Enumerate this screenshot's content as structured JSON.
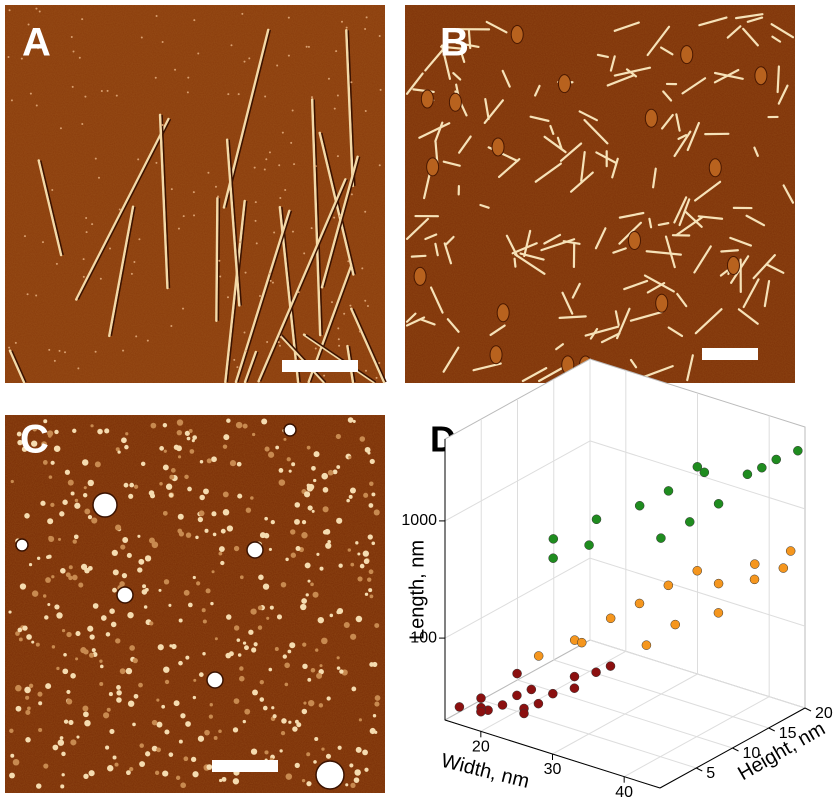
{
  "panels": [
    {
      "label": "A"
    },
    {
      "label": "B"
    },
    {
      "label": "C"
    }
  ],
  "chart_data": {
    "type": "scatter3d",
    "label": "D",
    "xlabel": "Width, nm",
    "ylabel": "Height, nm",
    "zlabel": "Length, nm",
    "xlim": [
      15,
      45
    ],
    "xticks": [
      20,
      30,
      40
    ],
    "ylim": [
      0,
      20
    ],
    "yticks": [
      5,
      10,
      15,
      20
    ],
    "zlim": [
      20,
      5000
    ],
    "zticks": [
      100,
      1000
    ],
    "zlog": true,
    "grid": true,
    "series": [
      {
        "color": "#8b1010",
        "x": [
          16,
          18,
          20,
          22,
          24,
          26,
          28,
          17,
          19,
          21,
          23,
          25,
          27,
          29,
          30,
          20,
          24
        ],
        "y": [
          1,
          2,
          1,
          3,
          2,
          4,
          5,
          3,
          1,
          2,
          4,
          3,
          6,
          7,
          8,
          5,
          2
        ],
        "z": [
          25,
          30,
          28,
          35,
          32,
          40,
          45,
          22,
          26,
          30,
          38,
          34,
          50,
          55,
          60,
          42,
          29
        ]
      },
      {
        "color": "#f5961e",
        "x": [
          22,
          25,
          28,
          30,
          32,
          34,
          36,
          38,
          40,
          42,
          44,
          27,
          33,
          39,
          43
        ],
        "y": [
          6,
          8,
          10,
          12,
          14,
          9,
          11,
          15,
          13,
          16,
          18,
          7,
          17,
          19,
          20
        ],
        "z": [
          60,
          80,
          120,
          150,
          200,
          100,
          140,
          250,
          180,
          300,
          350,
          90,
          220,
          280,
          400
        ]
      },
      {
        "color": "#1f8c1f",
        "x": [
          20,
          24,
          28,
          30,
          32,
          34,
          36,
          38,
          40,
          42,
          44,
          26,
          35,
          41,
          22
        ],
        "y": [
          10,
          12,
          14,
          16,
          18,
          11,
          13,
          15,
          17,
          19,
          20,
          9,
          16,
          18,
          8
        ],
        "z": [
          400,
          600,
          800,
          1000,
          1500,
          700,
          900,
          1200,
          2000,
          2500,
          3000,
          500,
          1800,
          2200,
          350
        ]
      }
    ]
  }
}
